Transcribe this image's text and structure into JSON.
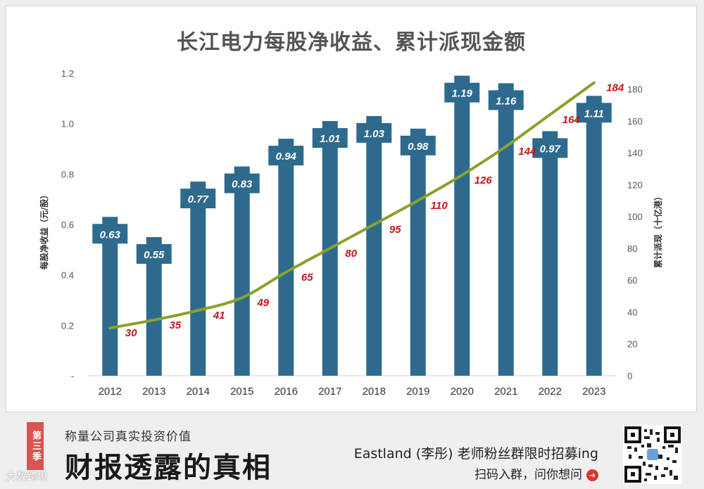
{
  "chart_data": {
    "type": "bar+line",
    "title": "长江电力每股净收益、累计派现金额",
    "categories": [
      "2012",
      "2013",
      "2014",
      "2015",
      "2016",
      "2017",
      "2018",
      "2019",
      "2020",
      "2021",
      "2022",
      "2023"
    ],
    "series": [
      {
        "name": "每股净收益",
        "type": "bar",
        "axis": "left",
        "values": [
          0.63,
          0.55,
          0.77,
          0.83,
          0.94,
          1.01,
          1.03,
          0.98,
          1.19,
          1.16,
          0.97,
          1.11
        ],
        "labels": [
          "0.63",
          "0.55",
          "0.77",
          "0.83",
          "0.94",
          "1.01",
          "1.03",
          "0.98",
          "1.19",
          "1.16",
          "0.97",
          "1.11"
        ]
      },
      {
        "name": "累计派现",
        "type": "line",
        "axis": "right",
        "values": [
          30,
          35,
          41,
          49,
          65,
          80,
          95,
          110,
          126,
          144,
          164,
          184
        ],
        "labels": [
          "30",
          "35",
          "41",
          "49",
          "65",
          "80",
          "95",
          "110",
          "126",
          "144",
          "164",
          "184"
        ]
      }
    ],
    "ylabel_left": "每股净收益（元/股）",
    "ylabel_right": "累计派现（十亿港）",
    "ylim_left": [
      0,
      1.2
    ],
    "ylim_right": [
      0,
      190
    ],
    "yticks_left": [
      "-",
      "0.2",
      "0.4",
      "0.6",
      "0.8",
      "1.0",
      "1.2"
    ],
    "yticks_left_values": [
      0,
      0.2,
      0.4,
      0.6,
      0.8,
      1.0,
      1.2
    ],
    "yticks_right": [
      "0",
      "20",
      "40",
      "60",
      "80",
      "100",
      "120",
      "140",
      "160",
      "180"
    ],
    "yticks_right_values": [
      0,
      20,
      40,
      60,
      80,
      100,
      120,
      140,
      160,
      180
    ],
    "colors": {
      "bar": "#2e6a8e",
      "line": "#8aa12c",
      "line_label": "#c4161c",
      "bar_label": "#ffffff",
      "axis_text": "#555555"
    }
  },
  "banner": {
    "season_tag": "第三季",
    "subtitle": "称量公司真实投资价值",
    "main_title": "财报透露的真相",
    "cta_line1": "Eastland (李彤) 老师粉丝群限时招募ing",
    "cta_line2": "扫码入群，问你想问",
    "watermark": "大数跨境"
  }
}
